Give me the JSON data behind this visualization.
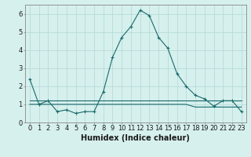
{
  "xlabel": "Humidex (Indice chaleur)",
  "background_color": "#d6f0ee",
  "grid_color": "#b8dbd8",
  "line_color": "#1a6b6b",
  "x": [
    0,
    1,
    2,
    3,
    4,
    5,
    6,
    7,
    8,
    9,
    10,
    11,
    12,
    13,
    14,
    15,
    16,
    17,
    18,
    19,
    20,
    21,
    22,
    23
  ],
  "y_main": [
    2.4,
    1.0,
    1.2,
    0.6,
    0.7,
    0.5,
    0.6,
    0.6,
    1.7,
    3.6,
    4.7,
    5.3,
    6.2,
    5.9,
    4.7,
    4.1,
    2.7,
    2.0,
    1.5,
    1.3,
    0.9,
    1.2,
    1.2,
    0.6
  ],
  "y_line1": [
    1.2,
    1.2,
    1.2,
    1.2,
    1.2,
    1.2,
    1.2,
    1.2,
    1.2,
    1.2,
    1.2,
    1.2,
    1.2,
    1.2,
    1.2,
    1.2,
    1.2,
    1.2,
    1.2,
    1.2,
    1.2,
    1.2,
    1.2,
    1.2
  ],
  "y_line2": [
    1.0,
    1.0,
    1.0,
    1.0,
    1.0,
    1.0,
    1.0,
    1.0,
    1.0,
    1.0,
    1.0,
    1.0,
    1.0,
    1.0,
    1.0,
    1.0,
    1.0,
    1.0,
    0.85,
    0.85,
    0.85,
    0.85,
    0.85,
    0.85
  ],
  "ylim": [
    0,
    6.5
  ],
  "xlim": [
    -0.5,
    23.5
  ],
  "yticks": [
    0,
    1,
    2,
    3,
    4,
    5,
    6
  ],
  "xticks": [
    0,
    1,
    2,
    3,
    4,
    5,
    6,
    7,
    8,
    9,
    10,
    11,
    12,
    13,
    14,
    15,
    16,
    17,
    18,
    19,
    20,
    21,
    22,
    23
  ],
  "fontsize_xlabel": 7,
  "fontsize_ticks": 6,
  "linewidth": 0.8,
  "markersize": 3.0
}
